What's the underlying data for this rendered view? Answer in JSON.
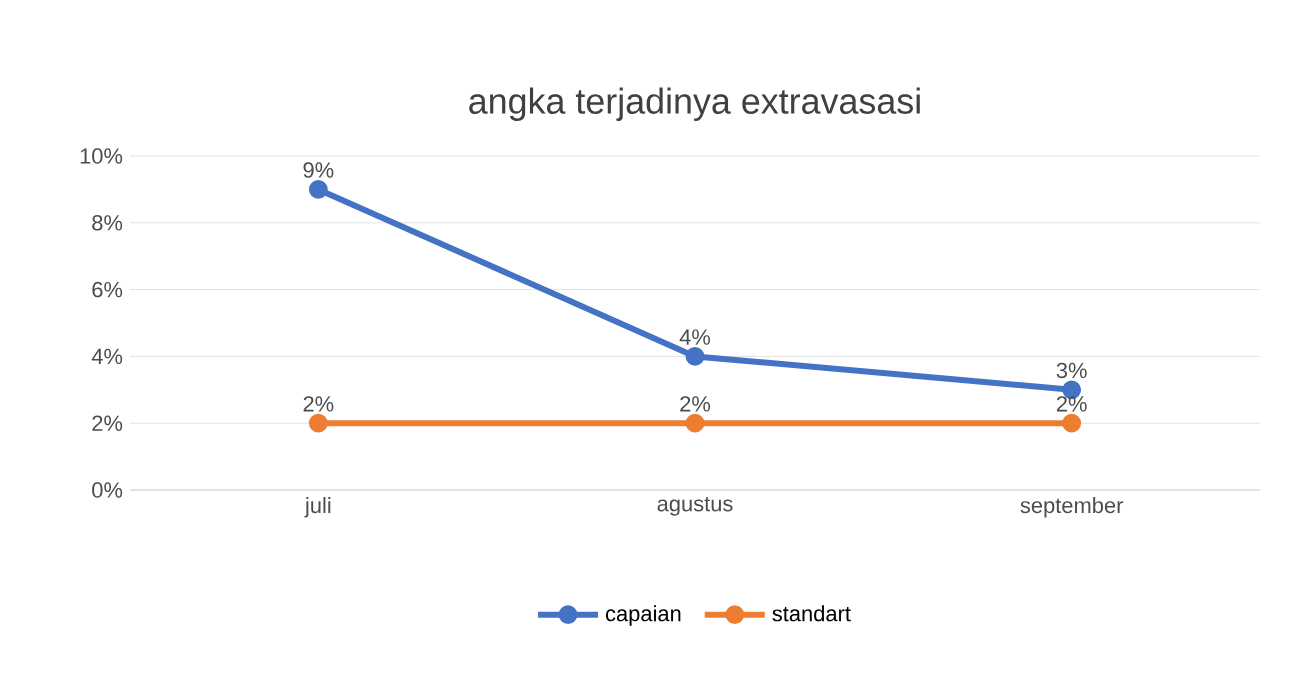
{
  "chart_data": {
    "type": "line",
    "title": "angka terjadinya extravasasi",
    "categories": [
      "juli",
      "agustus",
      "september"
    ],
    "series": [
      {
        "name": "capaian",
        "color": "#4472c4",
        "values": [
          9,
          4,
          3
        ],
        "value_labels": [
          "9%",
          "4%",
          "3%"
        ]
      },
      {
        "name": "standart",
        "color": "#ed7d31",
        "values": [
          2,
          2,
          2
        ],
        "value_labels": [
          "2%",
          "2%",
          "2%"
        ]
      }
    ],
    "ylim": [
      0,
      10
    ],
    "yticks": [
      {
        "value": 0,
        "label": "0%"
      },
      {
        "value": 2,
        "label": "2%"
      },
      {
        "value": 4,
        "label": "4%"
      },
      {
        "value": 6,
        "label": "6%"
      },
      {
        "value": 8,
        "label": "8%"
      },
      {
        "value": 10,
        "label": "10%"
      }
    ],
    "grid": "y",
    "legend": "bottom",
    "marker": "circle",
    "line_style": "solid"
  }
}
